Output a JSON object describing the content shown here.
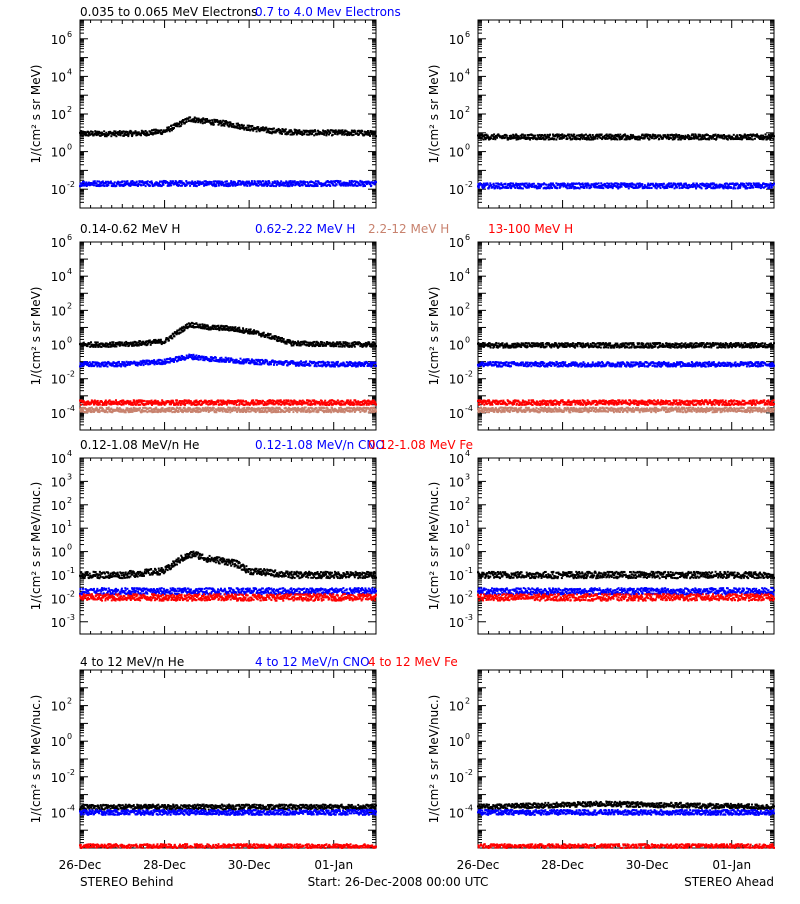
{
  "footer": {
    "left": "STEREO Behind",
    "center": "Start: 26-Dec-2008 00:00 UTC",
    "right": "STEREO Ahead"
  },
  "x_ticks": [
    "26-Dec",
    "28-Dec",
    "30-Dec",
    "01-Jan"
  ],
  "colors": {
    "black": "#000000",
    "blue": "#0000ff",
    "red": "#ff0000",
    "tan": "#c8826e"
  },
  "chart_data": [
    {
      "type": "scatter",
      "title": "0.035 to 0.065 MeV Electrons / 0.7 to 4.0 Mev Electrons",
      "legend": [
        {
          "text": "0.035 to 0.065 MeV Electrons",
          "color": "#000000"
        },
        {
          "text": "0.7 to 4.0 Mev Electrons",
          "color": "#0000ff"
        }
      ],
      "ylabel": "1/(cm² s sr MeV)",
      "yscale": "log",
      "ylim": [
        0.001,
        10000000
      ],
      "ytick_exps": [
        -2,
        0,
        2,
        4,
        6
      ],
      "x_unit": "days since start",
      "xlim": [
        0,
        7
      ],
      "panels": {
        "behind": [
          {
            "name": "0.035 to 0.065 MeV Electrons",
            "color": "#000000",
            "points": [
              [
                0,
                9
              ],
              [
                0.5,
                9
              ],
              [
                1.0,
                9
              ],
              [
                1.5,
                9.5
              ],
              [
                2.0,
                12
              ],
              [
                2.3,
                25
              ],
              [
                2.6,
                55
              ],
              [
                3.0,
                40
              ],
              [
                3.5,
                30
              ],
              [
                4.0,
                18
              ],
              [
                4.5,
                13
              ],
              [
                5.0,
                11
              ],
              [
                5.5,
                10
              ],
              [
                6.0,
                10
              ],
              [
                6.5,
                10
              ],
              [
                7.0,
                9
              ]
            ]
          },
          {
            "name": "0.7 to 4.0 Mev Electrons",
            "color": "#0000ff",
            "points": [
              [
                0,
                0.02
              ],
              [
                1.0,
                0.02
              ],
              [
                2.0,
                0.02
              ],
              [
                3.0,
                0.02
              ],
              [
                4.0,
                0.02
              ],
              [
                5.0,
                0.02
              ],
              [
                6.0,
                0.02
              ],
              [
                7.0,
                0.02
              ]
            ]
          }
        ],
        "ahead": [
          {
            "name": "0.035 to 0.065 MeV Electrons",
            "color": "#000000",
            "points": [
              [
                0,
                6
              ],
              [
                1.0,
                6
              ],
              [
                2.0,
                6
              ],
              [
                3.0,
                6
              ],
              [
                4.0,
                6
              ],
              [
                5.0,
                6
              ],
              [
                6.0,
                6
              ],
              [
                7.0,
                6
              ]
            ]
          },
          {
            "name": "0.7 to 4.0 Mev Electrons",
            "color": "#0000ff",
            "points": [
              [
                0,
                0.015
              ],
              [
                1.0,
                0.015
              ],
              [
                2.0,
                0.015
              ],
              [
                3.0,
                0.015
              ],
              [
                4.0,
                0.015
              ],
              [
                5.0,
                0.015
              ],
              [
                6.0,
                0.015
              ],
              [
                7.0,
                0.015
              ]
            ]
          }
        ]
      }
    },
    {
      "type": "scatter",
      "title": "0.14-0.62 MeV H / 0.62-2.22 MeV H / 2.2-12 MeV H / 13-100 MeV H",
      "legend": [
        {
          "text": "0.14-0.62 MeV H",
          "color": "#000000"
        },
        {
          "text": "0.62-2.22 MeV H",
          "color": "#0000ff"
        },
        {
          "text": "2.2-12 MeV H",
          "color": "#c8826e"
        },
        {
          "text": "13-100 MeV H",
          "color": "#ff0000"
        }
      ],
      "ylabel": "1/(cm² s sr MeV)",
      "yscale": "log",
      "ylim": [
        1e-05,
        1000000
      ],
      "ytick_exps": [
        -4,
        -2,
        0,
        2,
        4,
        6
      ],
      "x_unit": "days since start",
      "xlim": [
        0,
        7
      ],
      "panels": {
        "behind": [
          {
            "name": "0.14-0.62 MeV H",
            "color": "#000000",
            "points": [
              [
                0,
                1.0
              ],
              [
                1.0,
                1.0
              ],
              [
                2.0,
                1.5
              ],
              [
                2.3,
                5
              ],
              [
                2.6,
                15
              ],
              [
                3.0,
                10
              ],
              [
                3.5,
                9
              ],
              [
                4.0,
                6
              ],
              [
                4.5,
                3
              ],
              [
                5.0,
                1.2
              ],
              [
                6.0,
                1.0
              ],
              [
                7.0,
                1.0
              ]
            ]
          },
          {
            "name": "0.62-2.22 MeV H",
            "color": "#0000ff",
            "points": [
              [
                0,
                0.07
              ],
              [
                1.0,
                0.07
              ],
              [
                2.0,
                0.1
              ],
              [
                2.6,
                0.2
              ],
              [
                3.0,
                0.15
              ],
              [
                4.0,
                0.1
              ],
              [
                5.0,
                0.08
              ],
              [
                6.0,
                0.07
              ],
              [
                7.0,
                0.07
              ]
            ]
          },
          {
            "name": "2.2-12 MeV H",
            "color": "#c8826e",
            "points": [
              [
                0,
                0.00015
              ],
              [
                1.0,
                0.00015
              ],
              [
                2.0,
                0.00015
              ],
              [
                3.0,
                0.00015
              ],
              [
                4.0,
                0.00015
              ],
              [
                5.0,
                0.00015
              ],
              [
                6.0,
                0.00015
              ],
              [
                7.0,
                0.00015
              ]
            ]
          },
          {
            "name": "13-100 MeV H",
            "color": "#ff0000",
            "points": [
              [
                0,
                0.0004
              ],
              [
                1.0,
                0.0004
              ],
              [
                2.0,
                0.0004
              ],
              [
                3.0,
                0.0004
              ],
              [
                4.0,
                0.0004
              ],
              [
                5.0,
                0.0004
              ],
              [
                6.0,
                0.0004
              ],
              [
                7.0,
                0.0004
              ]
            ]
          }
        ],
        "ahead": [
          {
            "name": "0.14-0.62 MeV H",
            "color": "#000000",
            "points": [
              [
                0,
                0.9
              ],
              [
                1.0,
                0.9
              ],
              [
                2.0,
                0.9
              ],
              [
                3.0,
                0.9
              ],
              [
                4.0,
                0.9
              ],
              [
                5.0,
                0.9
              ],
              [
                6.0,
                0.9
              ],
              [
                7.0,
                0.9
              ]
            ]
          },
          {
            "name": "0.62-2.22 MeV H",
            "color": "#0000ff",
            "points": [
              [
                0,
                0.07
              ],
              [
                1.0,
                0.07
              ],
              [
                2.0,
                0.07
              ],
              [
                3.0,
                0.07
              ],
              [
                4.0,
                0.07
              ],
              [
                5.0,
                0.07
              ],
              [
                6.0,
                0.07
              ],
              [
                7.0,
                0.07
              ]
            ]
          },
          {
            "name": "2.2-12 MeV H",
            "color": "#c8826e",
            "points": [
              [
                0,
                0.00015
              ],
              [
                1.0,
                0.00015
              ],
              [
                2.0,
                0.00015
              ],
              [
                3.0,
                0.00015
              ],
              [
                4.0,
                0.00015
              ],
              [
                5.0,
                0.00015
              ],
              [
                6.0,
                0.00015
              ],
              [
                7.0,
                0.00015
              ]
            ]
          },
          {
            "name": "13-100 MeV H",
            "color": "#ff0000",
            "points": [
              [
                0,
                0.0004
              ],
              [
                1.0,
                0.0004
              ],
              [
                2.0,
                0.0004
              ],
              [
                3.0,
                0.0004
              ],
              [
                4.0,
                0.0004
              ],
              [
                5.0,
                0.0004
              ],
              [
                6.0,
                0.0004
              ],
              [
                7.0,
                0.0004
              ]
            ]
          }
        ]
      }
    },
    {
      "type": "scatter",
      "title": "0.12-1.08 MeV/n He / 0.12-1.08 MeV/n CNO / 0.12-1.08 MeV Fe",
      "legend": [
        {
          "text": "0.12-1.08 MeV/n He",
          "color": "#000000"
        },
        {
          "text": "0.12-1.08 MeV/n CNO",
          "color": "#0000ff"
        },
        {
          "text": "0.12-1.08 MeV Fe",
          "color": "#ff0000"
        }
      ],
      "ylabel": "1/(cm² s sr MeV/nuc.)",
      "yscale": "log",
      "ylim": [
        0.0003,
        10000
      ],
      "ytick_exps": [
        -3,
        -2,
        -1,
        0,
        1,
        2,
        3,
        4
      ],
      "x_unit": "days since start",
      "xlim": [
        0,
        7
      ],
      "panels": {
        "behind": [
          {
            "name": "0.12-1.08 MeV/n He",
            "color": "#000000",
            "points": [
              [
                0,
                0.1
              ],
              [
                1.0,
                0.1
              ],
              [
                2.0,
                0.15
              ],
              [
                2.4,
                0.5
              ],
              [
                2.7,
                0.8
              ],
              [
                3.0,
                0.5
              ],
              [
                3.4,
                0.4
              ],
              [
                3.7,
                0.3
              ],
              [
                4.0,
                0.15
              ],
              [
                5.0,
                0.1
              ],
              [
                6.0,
                0.1
              ],
              [
                7.0,
                0.1
              ]
            ]
          },
          {
            "name": "0.12-1.08 MeV/n CNO",
            "color": "#0000ff",
            "points": [
              [
                0,
                0.02
              ],
              [
                2.0,
                0.02
              ],
              [
                3.0,
                0.02
              ],
              [
                4.0,
                0.02
              ],
              [
                7.0,
                0.02
              ]
            ]
          },
          {
            "name": "0.12-1.08 MeV Fe",
            "color": "#ff0000",
            "points": [
              [
                0,
                0.011
              ],
              [
                2.0,
                0.011
              ],
              [
                4.0,
                0.011
              ],
              [
                7.0,
                0.011
              ]
            ]
          }
        ],
        "ahead": [
          {
            "name": "0.12-1.08 MeV/n He",
            "color": "#000000",
            "points": [
              [
                0,
                0.1
              ],
              [
                1.0,
                0.1
              ],
              [
                2.0,
                0.1
              ],
              [
                3.0,
                0.1
              ],
              [
                4.0,
                0.1
              ],
              [
                5.0,
                0.1
              ],
              [
                6.0,
                0.1
              ],
              [
                7.0,
                0.1
              ]
            ]
          },
          {
            "name": "0.12-1.08 MeV/n CNO",
            "color": "#0000ff",
            "points": [
              [
                0,
                0.02
              ],
              [
                2.0,
                0.02
              ],
              [
                4.0,
                0.02
              ],
              [
                7.0,
                0.02
              ]
            ]
          },
          {
            "name": "0.12-1.08 MeV Fe",
            "color": "#ff0000",
            "points": [
              [
                0,
                0.011
              ],
              [
                2.0,
                0.011
              ],
              [
                4.0,
                0.011
              ],
              [
                7.0,
                0.011
              ]
            ]
          }
        ]
      }
    },
    {
      "type": "scatter",
      "title": "4 to 12 MeV/n He / 4 to 12 MeV/n CNO / 4 to 12 MeV Fe",
      "legend": [
        {
          "text": "4 to 12 MeV/n He",
          "color": "#000000"
        },
        {
          "text": "4 to 12 MeV/n CNO",
          "color": "#0000ff"
        },
        {
          "text": "4 to 12 MeV Fe",
          "color": "#ff0000"
        }
      ],
      "ylabel": "1/(cm² s sr MeV/nuc.)",
      "yscale": "log",
      "ylim": [
        1e-06,
        10000
      ],
      "ytick_exps": [
        -4,
        -2,
        0,
        2
      ],
      "x_unit": "days since start",
      "xlim": [
        0,
        7
      ],
      "panels": {
        "behind": [
          {
            "name": "4 to 12 MeV/n He",
            "color": "#000000",
            "points": [
              [
                0,
                0.0002
              ],
              [
                2.0,
                0.0002
              ],
              [
                4.0,
                0.0002
              ],
              [
                7.0,
                0.0002
              ]
            ]
          },
          {
            "name": "4 to 12 MeV/n CNO",
            "color": "#0000ff",
            "points": [
              [
                0,
                0.0001
              ],
              [
                7.0,
                0.0001
              ]
            ]
          },
          {
            "name": "4 to 12 MeV Fe",
            "color": "#ff0000",
            "points": [
              [
                0,
                1.2e-06
              ],
              [
                7.0,
                1.2e-06
              ]
            ]
          }
        ],
        "ahead": [
          {
            "name": "4 to 12 MeV/n He",
            "color": "#000000",
            "points": [
              [
                0,
                0.0002
              ],
              [
                3.0,
                0.0003
              ],
              [
                7.0,
                0.0002
              ]
            ]
          },
          {
            "name": "4 to 12 MeV/n CNO",
            "color": "#0000ff",
            "points": [
              [
                0,
                0.0001
              ],
              [
                7.0,
                0.0001
              ]
            ]
          },
          {
            "name": "4 to 12 MeV Fe",
            "color": "#ff0000",
            "points": [
              [
                0,
                1.2e-06
              ],
              [
                7.0,
                1.2e-06
              ]
            ]
          }
        ]
      }
    }
  ]
}
